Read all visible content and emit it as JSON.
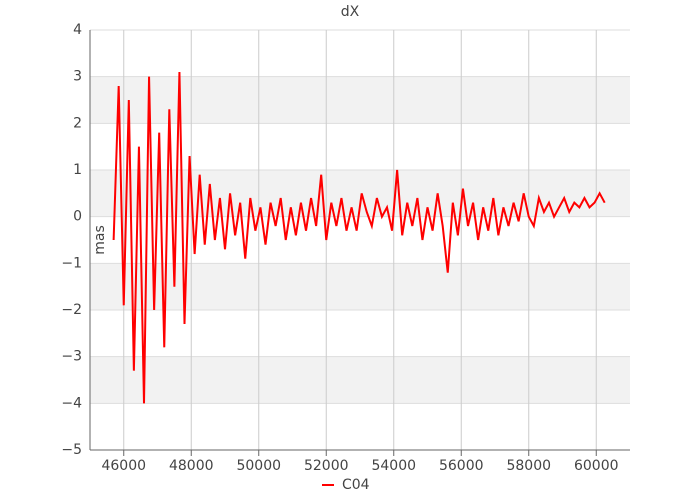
{
  "chart_data": {
    "type": "line",
    "title": "dX",
    "y_label": "mas",
    "x": [
      45700,
      45850,
      46000,
      46150,
      46300,
      46450,
      46600,
      46750,
      46900,
      47050,
      47200,
      47350,
      47500,
      47650,
      47800,
      47950,
      48100,
      48250,
      48400,
      48550,
      48700,
      48850,
      49000,
      49150,
      49300,
      49450,
      49600,
      49750,
      49900,
      50050,
      50200,
      50350,
      50500,
      50650,
      50800,
      50950,
      51100,
      51250,
      51400,
      51550,
      51700,
      51850,
      52000,
      52150,
      52300,
      52450,
      52600,
      52750,
      52900,
      53050,
      53200,
      53350,
      53500,
      53650,
      53800,
      53950,
      54100,
      54250,
      54400,
      54550,
      54700,
      54850,
      55000,
      55150,
      55300,
      55450,
      55600,
      55750,
      55900,
      56050,
      56200,
      56350,
      56500,
      56650,
      56800,
      56950,
      57100,
      57250,
      57400,
      57550,
      57700,
      57850,
      58000,
      58150,
      58300,
      58450,
      58600,
      58750,
      58900,
      59050,
      59200,
      59350,
      59500,
      59650,
      59800,
      59950,
      60100,
      60250
    ],
    "series": [
      {
        "name": "C04",
        "color": "#ff0000",
        "values": [
          -0.5,
          2.8,
          -1.9,
          2.5,
          -3.3,
          1.5,
          -4.0,
          3.0,
          -2.0,
          1.8,
          -2.8,
          2.3,
          -1.5,
          3.1,
          -2.3,
          1.3,
          -0.8,
          0.9,
          -0.6,
          0.7,
          -0.5,
          0.4,
          -0.7,
          0.5,
          -0.4,
          0.3,
          -0.9,
          0.4,
          -0.3,
          0.2,
          -0.6,
          0.3,
          -0.2,
          0.4,
          -0.5,
          0.2,
          -0.4,
          0.3,
          -0.3,
          0.4,
          -0.2,
          0.9,
          -0.5,
          0.3,
          -0.2,
          0.4,
          -0.3,
          0.2,
          -0.3,
          0.5,
          0.1,
          -0.2,
          0.4,
          0.0,
          0.2,
          -0.3,
          1.0,
          -0.4,
          0.3,
          -0.2,
          0.4,
          -0.5,
          0.2,
          -0.3,
          0.5,
          -0.2,
          -1.2,
          0.3,
          -0.4,
          0.6,
          -0.2,
          0.3,
          -0.5,
          0.2,
          -0.3,
          0.4,
          -0.4,
          0.2,
          -0.2,
          0.3,
          -0.1,
          0.5,
          0.0,
          -0.2,
          0.4,
          0.1,
          0.3,
          0.0,
          0.2,
          0.4,
          0.1,
          0.3,
          0.2,
          0.4,
          0.2,
          0.3,
          0.5,
          0.3
        ]
      }
    ],
    "xlim": [
      45000,
      61000
    ],
    "xticks": [
      46000,
      48000,
      50000,
      52000,
      54000,
      56000,
      58000,
      60000
    ],
    "ylim": [
      -5,
      4
    ],
    "yticks": [
      {
        "value": -5,
        "label": "−5"
      },
      {
        "value": -4,
        "label": "−4"
      },
      {
        "value": -3,
        "label": "−3"
      },
      {
        "value": -2,
        "label": "−2"
      },
      {
        "value": -1,
        "label": "−1"
      },
      0,
      1,
      2,
      3,
      4
    ],
    "grid": true,
    "legend": "bottom"
  }
}
